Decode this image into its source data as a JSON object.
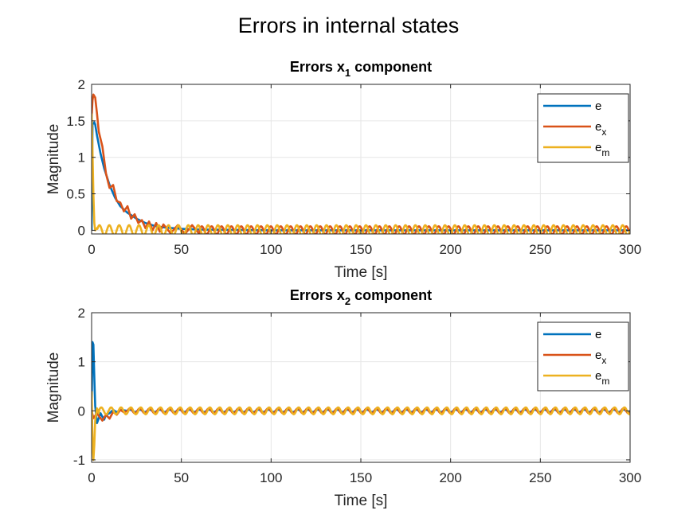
{
  "figure": {
    "suptitle": "Errors in internal states"
  },
  "colors": {
    "e": "#0072BD",
    "ex": "#D95319",
    "em": "#EDB120",
    "grid": "#e6e6e6",
    "axis": "#262626"
  },
  "chart_data": [
    {
      "type": "line",
      "title_main": "Errors x",
      "title_sub": "1",
      "title_rest": " component",
      "xlabel": "Time [s]",
      "ylabel": "Magnitude",
      "xlim": [
        0,
        300
      ],
      "ylim": [
        -0.05,
        2
      ],
      "xticks": [
        0,
        50,
        100,
        150,
        200,
        250,
        300
      ],
      "yticks": [
        0,
        0.5,
        1,
        1.5,
        2
      ],
      "ytick_labels": [
        "0",
        "0.5",
        "1",
        "1.5",
        "2"
      ],
      "legend_position": "top-right",
      "series": [
        {
          "name": "e",
          "label_main": "e",
          "label_sub": "",
          "color": "#0072BD",
          "x": [
            0,
            0.5,
            1.5,
            2,
            3,
            5,
            7,
            10,
            13,
            16,
            20,
            25,
            30,
            35,
            40,
            50,
            60,
            80,
            100,
            150,
            200,
            250,
            300
          ],
          "y": [
            0,
            1.45,
            1.48,
            1.45,
            1.3,
            1.05,
            0.85,
            0.62,
            0.45,
            0.33,
            0.24,
            0.16,
            0.1,
            0.06,
            0.04,
            0.02,
            0.01,
            0.005,
            0,
            0,
            0,
            0,
            0
          ]
        },
        {
          "name": "e_x",
          "label_main": "e",
          "label_sub": "x",
          "color": "#D95319",
          "x": [
            0,
            0.5,
            1,
            2,
            3,
            4,
            6,
            8,
            10,
            12,
            14,
            16,
            18,
            20,
            22,
            24,
            26,
            28,
            30,
            32,
            34,
            36,
            38,
            40,
            44,
            48,
            52,
            56,
            60
          ],
          "y": [
            1.55,
            1.78,
            1.86,
            1.82,
            1.6,
            1.35,
            1.15,
            0.78,
            0.58,
            0.62,
            0.4,
            0.38,
            0.26,
            0.33,
            0.16,
            0.22,
            0.1,
            0.14,
            0.03,
            0.12,
            0.0,
            0.1,
            -0.02,
            0.08,
            -0.04,
            0.07,
            -0.05,
            0.07,
            -0.05
          ],
          "osc": {
            "from": 60,
            "amp": 0.055,
            "period": 5.5
          }
        },
        {
          "name": "e_m",
          "label_main": "e",
          "label_sub": "m",
          "color": "#EDB120",
          "x": [
            0,
            0.4,
            1,
            1.5,
            2,
            3
          ],
          "y": [
            1.6,
            1.2,
            0.5,
            0.1,
            0.0,
            0.03
          ],
          "osc": {
            "from": 3,
            "amp": 0.07,
            "period": 5.5
          }
        }
      ]
    },
    {
      "type": "line",
      "title_main": "Errors x",
      "title_sub": "2",
      "title_rest": " component",
      "xlabel": "Time [s]",
      "ylabel": "Magnitude",
      "xlim": [
        0,
        300
      ],
      "ylim": [
        -1.05,
        2
      ],
      "xticks": [
        0,
        50,
        100,
        150,
        200,
        250,
        300
      ],
      "yticks": [
        -1,
        0,
        1,
        2
      ],
      "ytick_labels": [
        "-1",
        "0",
        "1",
        "2"
      ],
      "legend_position": "top-right",
      "series": [
        {
          "name": "e",
          "label_main": "e",
          "label_sub": "",
          "color": "#0072BD",
          "x": [
            0,
            0.5,
            1,
            1.5,
            2,
            3,
            4,
            5,
            6,
            7,
            8,
            10,
            12,
            14,
            16,
            20
          ],
          "y": [
            0,
            1.4,
            1.35,
            0.7,
            0.1,
            -0.25,
            -0.15,
            -0.05,
            -0.12,
            -0.18,
            -0.08,
            -0.05,
            0.02,
            -0.03,
            0.02,
            0.0
          ],
          "osc": {
            "from": 20,
            "amp": 0.025,
            "period": 5.5
          }
        },
        {
          "name": "e_x",
          "label_main": "e",
          "label_sub": "x",
          "color": "#D95319",
          "x": [
            0,
            1,
            2,
            3,
            4,
            6,
            8,
            10,
            12,
            14,
            16,
            18,
            20
          ],
          "y": [
            0,
            -0.15,
            -0.1,
            -0.05,
            -0.1,
            -0.2,
            -0.08,
            -0.16,
            -0.02,
            -0.08,
            0.02,
            -0.03,
            0.0
          ],
          "osc": {
            "from": 20,
            "amp": 0.05,
            "period": 5.5
          }
        },
        {
          "name": "e_m",
          "label_main": "e",
          "label_sub": "m",
          "color": "#EDB120",
          "x": [
            0,
            0.5,
            1,
            1.5,
            2,
            3,
            4
          ],
          "y": [
            0.4,
            -0.6,
            -1.0,
            -0.7,
            -0.2,
            0.05,
            -0.05
          ],
          "osc": {
            "from": 4,
            "amp": 0.07,
            "period": 5.5
          }
        }
      ]
    }
  ]
}
